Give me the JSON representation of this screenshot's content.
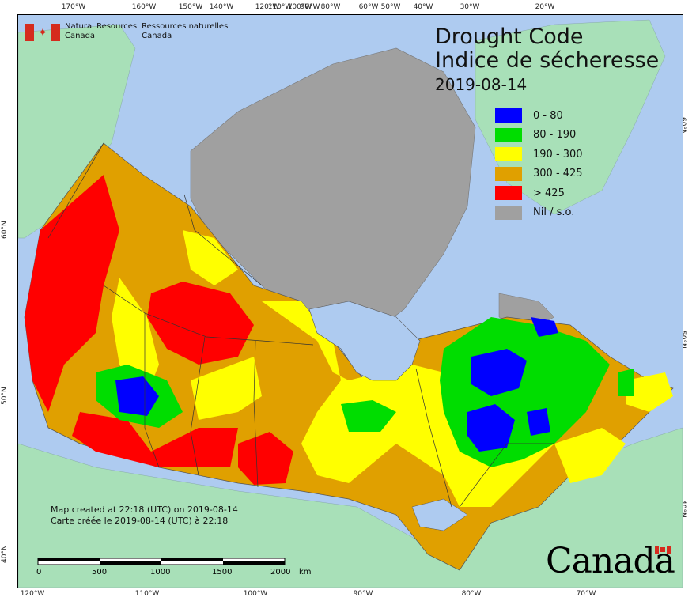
{
  "header": {
    "agency_en": [
      "Natural Resources",
      "Canada"
    ],
    "agency_fr": [
      "Ressources naturelles",
      "Canada"
    ],
    "title_en": "Drought Code",
    "title_fr": "Indice de sécheresse",
    "date": "2019-08-14"
  },
  "legend": {
    "items": [
      {
        "label": "0 - 80",
        "color": "#0000ff"
      },
      {
        "label": "80 - 190",
        "color": "#00dd00"
      },
      {
        "label": "190 - 300",
        "color": "#ffff00"
      },
      {
        "label": "300 - 425",
        "color": "#e0a000"
      },
      {
        "label": "> 425",
        "color": "#ff0000"
      },
      {
        "label": "Nil / s.o.",
        "color": "#a0a0a0"
      }
    ]
  },
  "axes": {
    "top_ticks": [
      "170°W",
      "160°W",
      "150°W",
      "140°W",
      "120°W",
      "110°W",
      "100°W",
      "90°W",
      "80°W",
      "60°W",
      "50°W",
      "40°W",
      "30°W",
      "20°W"
    ],
    "bottom_ticks": [
      "120°W",
      "110°W",
      "100°W",
      "90°W",
      "80°W",
      "70°W"
    ],
    "left_ticks": [
      "60°N",
      "50°N",
      "40°N"
    ],
    "right_ticks": [
      "60°N",
      "50°N",
      "40°N"
    ]
  },
  "footer": {
    "created_en": "Map created at 22:18 (UTC) on 2019-08-14",
    "created_fr": "Carte créée le 2019-08-14 (UTC) à 22:18"
  },
  "scale_bar": {
    "labels": [
      "0",
      "500",
      "1000",
      "1500",
      "2000"
    ],
    "unit": "km"
  },
  "wordmark": "Canada",
  "colors": {
    "ocean": "#aecbf0",
    "land_other": "#a8e0b8",
    "nil": "#a0a0a0"
  }
}
